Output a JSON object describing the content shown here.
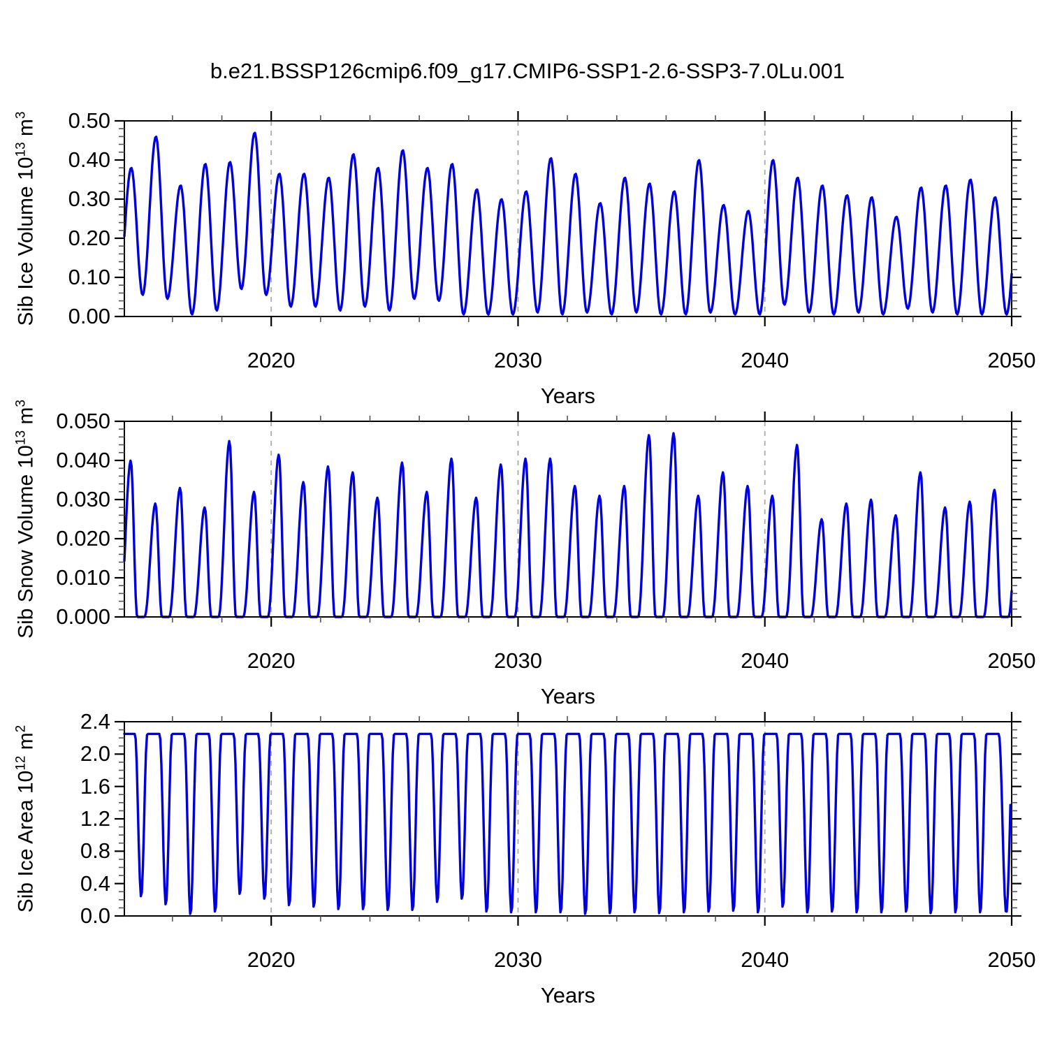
{
  "title": "b.e21.BSSP126cmip6.f09_g17.CMIP6-SSP1-2.6-SSP3-7.0Lu.001",
  "palette": {
    "line": "#0000dd",
    "grid": "#aaaaaa",
    "axis": "#000000",
    "minor_tick": "#555555",
    "background": "#ffffff"
  },
  "chart_data": [
    {
      "type": "line",
      "name": "sib-ice-volume",
      "shape": "extremes",
      "ylabel": "Sib Ice Volume 10^13 m^3",
      "ylabel_parts": [
        {
          "t": "Sib Ice Volume 10"
        },
        {
          "t": "13",
          "sup": true
        },
        {
          "t": " m"
        },
        {
          "t": "3",
          "sup": true
        }
      ],
      "xlabel": "Years",
      "xlim": [
        2014.05,
        2050
      ],
      "ylim": [
        0,
        0.5
      ],
      "ytick_values": [
        0,
        0.1,
        0.2,
        0.3,
        0.4,
        0.5
      ],
      "ytick_labels": [
        "0.00",
        "0.10",
        "0.20",
        "0.30",
        "0.40",
        "0.50"
      ],
      "y_minor_step": 0.02,
      "xtick_values": [
        2020,
        2030,
        2040,
        2050
      ],
      "xtick_labels": [
        "2020",
        "2030",
        "2040",
        "2050"
      ],
      "x_minor_step": 2,
      "gridline_years": [
        2020,
        2030,
        2040
      ],
      "grid": "vertical-dashed",
      "seasonality": "monthly series; spring maximum near April, autumn minimum near October",
      "peak_t": 0.33,
      "min_t": 0.79,
      "years": [
        2014,
        2015,
        2016,
        2017,
        2018,
        2019,
        2020,
        2021,
        2022,
        2023,
        2024,
        2025,
        2026,
        2027,
        2028,
        2029,
        2030,
        2031,
        2032,
        2033,
        2034,
        2035,
        2036,
        2037,
        2038,
        2039,
        2040,
        2041,
        2042,
        2043,
        2044,
        2045,
        2046,
        2047,
        2048,
        2049
      ],
      "spring_max": [
        0.38,
        0.46,
        0.335,
        0.39,
        0.395,
        0.47,
        0.365,
        0.365,
        0.355,
        0.415,
        0.38,
        0.425,
        0.38,
        0.39,
        0.325,
        0.3,
        0.32,
        0.405,
        0.365,
        0.29,
        0.355,
        0.34,
        0.32,
        0.4,
        0.285,
        0.27,
        0.4,
        0.355,
        0.335,
        0.31,
        0.305,
        0.255,
        0.33,
        0.335,
        0.35,
        0.305
      ],
      "autumn_min": [
        0.055,
        0.045,
        0.005,
        0.015,
        0.07,
        0.055,
        0.025,
        0.025,
        0.015,
        0.025,
        0.015,
        0.045,
        0.04,
        0.005,
        0.005,
        0.005,
        0.01,
        0.005,
        0.01,
        0.005,
        0.01,
        0.005,
        0.005,
        0.01,
        0.005,
        0.005,
        0.03,
        0.01,
        0.005,
        0.01,
        0.005,
        0.02,
        0.01,
        0.005,
        0.005,
        0.005
      ],
      "prev_autumn_min": 0.05,
      "next_spring_max": 0.32
    },
    {
      "type": "line",
      "name": "sib-snow-volume",
      "shape": "spikes",
      "ylabel": "Sib Snow Volume 10^13 m^3",
      "ylabel_parts": [
        {
          "t": "Sib Snow Volume 10"
        },
        {
          "t": "13",
          "sup": true
        },
        {
          "t": " m"
        },
        {
          "t": "3",
          "sup": true
        }
      ],
      "xlabel": "Years",
      "xlim": [
        2014.05,
        2050
      ],
      "ylim": [
        0,
        0.05
      ],
      "ytick_values": [
        0,
        0.01,
        0.02,
        0.03,
        0.04,
        0.05
      ],
      "ytick_labels": [
        "0.000",
        "0.010",
        "0.020",
        "0.030",
        "0.040",
        "0.050"
      ],
      "y_minor_step": 0.002,
      "xtick_values": [
        2020,
        2030,
        2040,
        2050
      ],
      "xtick_labels": [
        "2020",
        "2030",
        "2040",
        "2050"
      ],
      "x_minor_step": 2,
      "gridline_years": [
        2020,
        2030,
        2040
      ],
      "grid": "vertical-dashed",
      "seasonality": "monthly series; sharp spring maximum near April, flat zero July-October",
      "peak_t": 0.31,
      "zero_start_t": 0.57,
      "zero_end_t": 0.87,
      "years": [
        2014,
        2015,
        2016,
        2017,
        2018,
        2019,
        2020,
        2021,
        2022,
        2023,
        2024,
        2025,
        2026,
        2027,
        2028,
        2029,
        2030,
        2031,
        2032,
        2033,
        2034,
        2035,
        2036,
        2037,
        2038,
        2039,
        2040,
        2041,
        2042,
        2043,
        2044,
        2045,
        2046,
        2047,
        2048,
        2049
      ],
      "spring_max": [
        0.04,
        0.029,
        0.033,
        0.028,
        0.045,
        0.032,
        0.0415,
        0.0345,
        0.0385,
        0.037,
        0.0305,
        0.0395,
        0.032,
        0.0405,
        0.0305,
        0.039,
        0.0405,
        0.0405,
        0.0335,
        0.031,
        0.0335,
        0.0465,
        0.047,
        0.031,
        0.037,
        0.0335,
        0.031,
        0.044,
        0.025,
        0.029,
        0.03,
        0.026,
        0.037,
        0.028,
        0.0295,
        0.0325
      ],
      "summer_min": 0.0,
      "next_spring_max": 0.033
    },
    {
      "type": "line",
      "name": "sib-ice-area",
      "shape": "plateau",
      "ylabel": "Sib Ice Area 10^12 m^2",
      "ylabel_parts": [
        {
          "t": "Sib Ice Area 10"
        },
        {
          "t": "12",
          "sup": true
        },
        {
          "t": " m"
        },
        {
          "t": "2",
          "sup": true
        }
      ],
      "xlabel": "Years",
      "xlim": [
        2014.05,
        2050
      ],
      "ylim": [
        0,
        2.4
      ],
      "ytick_values": [
        0,
        0.4,
        0.8,
        1.2,
        1.6,
        2.0,
        2.4
      ],
      "ytick_labels": [
        "0.0",
        "0.4",
        "0.8",
        "1.2",
        "1.6",
        "2.0",
        "2.4"
      ],
      "y_minor_step": 0.1,
      "xtick_values": [
        2020,
        2030,
        2040,
        2050
      ],
      "xtick_labels": [
        "2020",
        "2030",
        "2040",
        "2050"
      ],
      "x_minor_step": 2,
      "gridline_years": [
        2020,
        2030,
        2040
      ],
      "grid": "vertical-dashed",
      "seasonality": "monthly series; winter plateau ~2.25, narrow late-summer minimum near September",
      "plateau_max": 2.25,
      "fall_start_t": 0.48,
      "min_t": 0.73,
      "recover_t": 0.98,
      "years": [
        2014,
        2015,
        2016,
        2017,
        2018,
        2019,
        2020,
        2021,
        2022,
        2023,
        2024,
        2025,
        2026,
        2027,
        2028,
        2029,
        2030,
        2031,
        2032,
        2033,
        2034,
        2035,
        2036,
        2037,
        2038,
        2039,
        2040,
        2041,
        2042,
        2043,
        2044,
        2045,
        2046,
        2047,
        2048,
        2049
      ],
      "summer_min": [
        0.23,
        0.13,
        0.01,
        0.04,
        0.26,
        0.2,
        0.12,
        0.1,
        0.07,
        0.07,
        0.06,
        0.06,
        0.16,
        0.2,
        0.04,
        0.03,
        0.03,
        0.03,
        0.01,
        0.02,
        0.03,
        0.02,
        0.03,
        0.04,
        0.05,
        0.03,
        0.1,
        0.03,
        0.04,
        0.03,
        0.03,
        0.04,
        0.02,
        0.03,
        0.03,
        0.03
      ],
      "last_year": {
        "min_t": 0.78,
        "recover_t": 1.08,
        "t_end": 2049.95
      }
    }
  ]
}
